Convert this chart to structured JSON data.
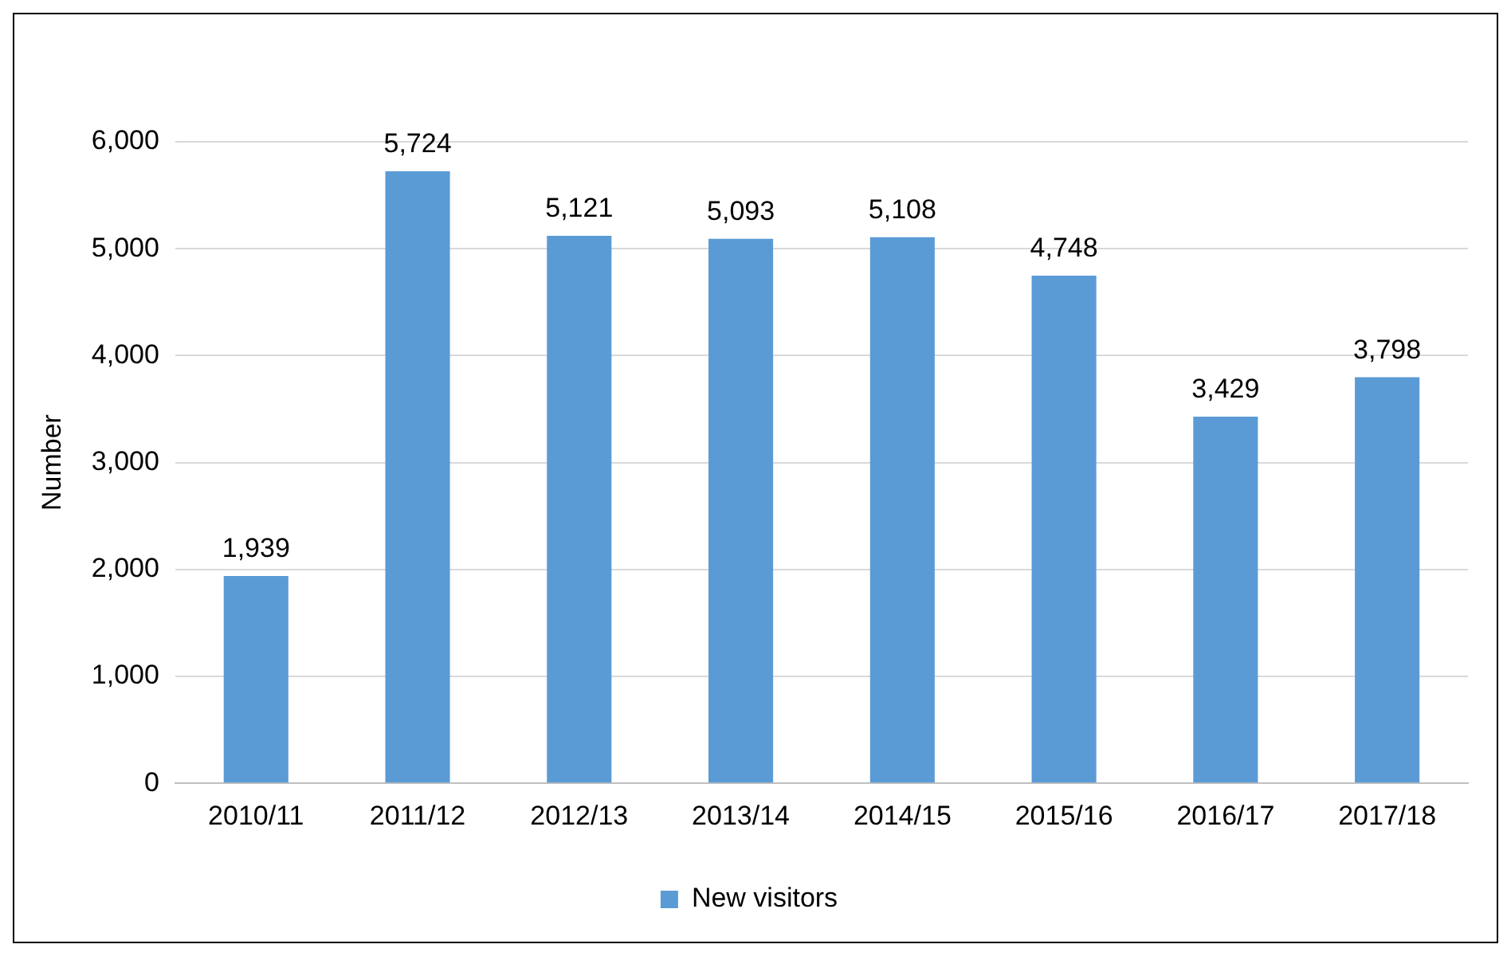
{
  "chart_data": {
    "type": "bar",
    "ylabel": "Number",
    "categories": [
      "2010/11",
      "2011/12",
      "2012/13",
      "2013/14",
      "2014/15",
      "2015/16",
      "2016/17",
      "2017/18"
    ],
    "series": [
      {
        "name": "New visitors",
        "color": "#5b9bd5",
        "values": [
          1939,
          5724,
          5121,
          5093,
          5108,
          4748,
          3429,
          3798
        ],
        "value_labels": [
          "1,939",
          "5,724",
          "5,121",
          "5,093",
          "5,108",
          "4,748",
          "3,429",
          "3,798"
        ]
      }
    ],
    "ylim": [
      0,
      6000
    ],
    "yticks": [
      {
        "value": 0,
        "label": "0"
      },
      {
        "value": 1000,
        "label": "1,000"
      },
      {
        "value": 2000,
        "label": "2,000"
      },
      {
        "value": 3000,
        "label": "3,000"
      },
      {
        "value": 4000,
        "label": "4,000"
      },
      {
        "value": 5000,
        "label": "5,000"
      },
      {
        "value": 6000,
        "label": "6,000"
      }
    ],
    "grid": "y",
    "legend": "bottom"
  }
}
